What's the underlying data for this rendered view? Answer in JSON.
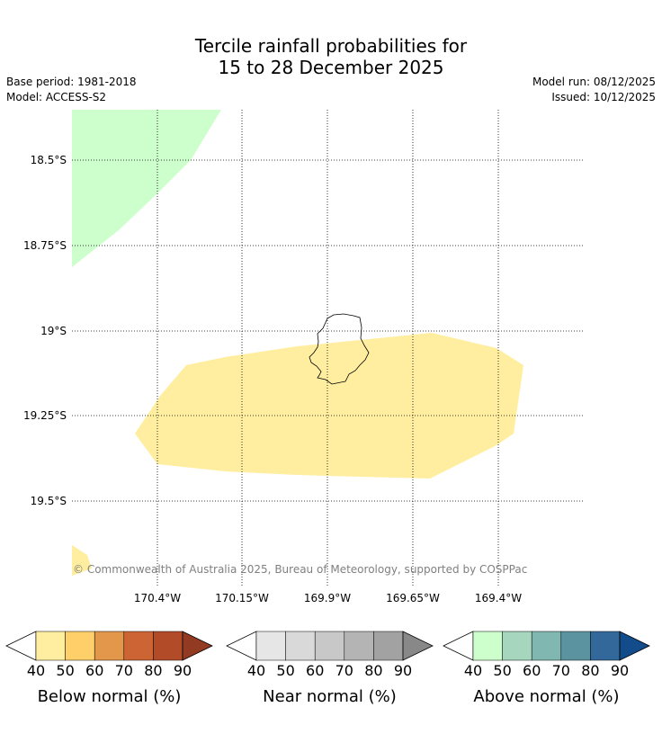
{
  "header": {
    "title_line1": "Tercile rainfall probabilities for",
    "title_line2": "15 to 28 December 2025",
    "base_period": "Base period: 1981-2018",
    "model": "Model: ACCESS-S2",
    "model_run": "Model run: 08/12/2025",
    "issued": "Issued: 10/12/2025"
  },
  "map": {
    "latitude_labels": [
      "18.5°S",
      "18.75°S",
      "19°S",
      "19.25°S",
      "19.5°S"
    ],
    "longitude_labels": [
      "170.4°W",
      "170.15°W",
      "169.9°W",
      "169.65°W",
      "169.4°W"
    ],
    "copyright": "© Commonwealth of Australia 2025, Bureau of Meteorology, supported by COSPPac",
    "region_colors": {
      "above_normal_50": "#ccffcc",
      "below_normal_40": "#ffeea0"
    }
  },
  "legends": [
    {
      "title": "Below normal (%)",
      "ticks": [
        "40",
        "50",
        "60",
        "70",
        "80",
        "90"
      ],
      "colors": [
        "#ffffff",
        "#ffeea0",
        "#ffd06a",
        "#e2974a",
        "#cd6434",
        "#b24c28",
        "#933a22"
      ]
    },
    {
      "title": "Near normal (%)",
      "ticks": [
        "40",
        "50",
        "60",
        "70",
        "80",
        "90"
      ],
      "colors": [
        "#ffffff",
        "#e6e6e6",
        "#d9d9d9",
        "#c8c8c8",
        "#b4b4b4",
        "#a2a2a2",
        "#888888"
      ]
    },
    {
      "title": "Above normal (%)",
      "ticks": [
        "40",
        "50",
        "60",
        "70",
        "80",
        "90"
      ],
      "colors": [
        "#ffffff",
        "#ccffcc",
        "#a6d7be",
        "#80b7b0",
        "#5b93a0",
        "#33689a",
        "#124c8a"
      ]
    }
  ]
}
